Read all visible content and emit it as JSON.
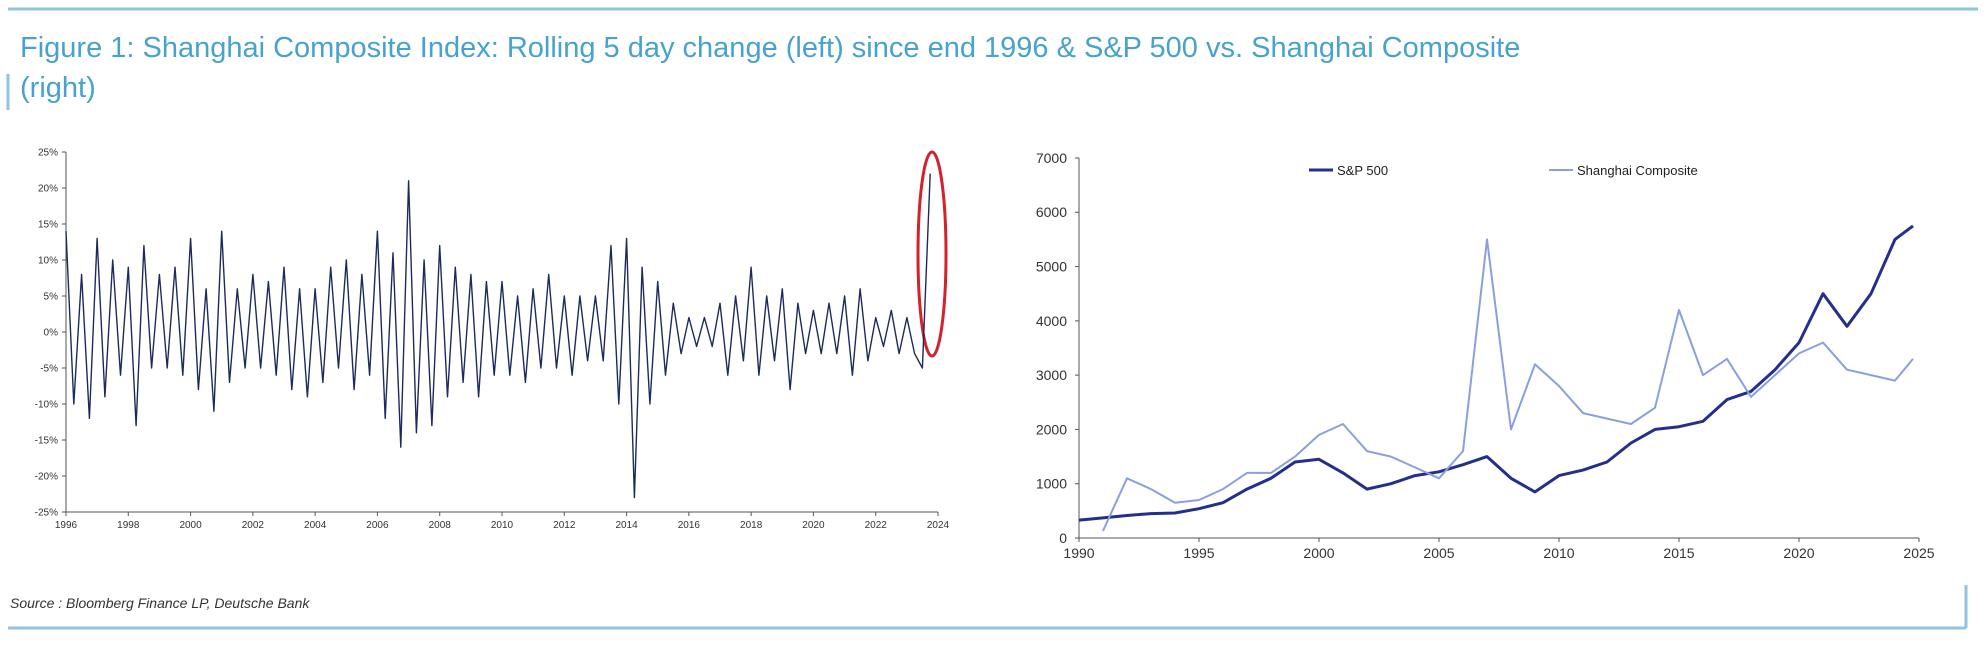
{
  "header": {
    "title": "Figure 1: Shanghai Composite Index: Rolling 5 day change (left) since end 1996 & S&P 500 vs. Shanghai Composite (right)"
  },
  "footer": {
    "source": "Source : Bloomberg Finance LP, Deutsche Bank"
  },
  "chart_data": [
    {
      "type": "line",
      "grid": false,
      "x": [
        1996,
        1996.25,
        1996.5,
        1996.75,
        1997,
        1997.25,
        1997.5,
        1997.75,
        1998,
        1998.25,
        1998.5,
        1998.75,
        1999,
        1999.25,
        1999.5,
        1999.75,
        2000,
        2000.25,
        2000.5,
        2000.75,
        2001,
        2001.25,
        2001.5,
        2001.75,
        2002,
        2002.25,
        2002.5,
        2002.75,
        2003,
        2003.25,
        2003.5,
        2003.75,
        2004,
        2004.25,
        2004.5,
        2004.75,
        2005,
        2005.25,
        2005.5,
        2005.75,
        2006,
        2006.25,
        2006.5,
        2006.75,
        2007,
        2007.25,
        2007.5,
        2007.75,
        2008,
        2008.25,
        2008.5,
        2008.75,
        2009,
        2009.25,
        2009.5,
        2009.75,
        2010,
        2010.25,
        2010.5,
        2010.75,
        2011,
        2011.25,
        2011.5,
        2011.75,
        2012,
        2012.25,
        2012.5,
        2012.75,
        2013,
        2013.25,
        2013.5,
        2013.75,
        2014,
        2014.25,
        2014.5,
        2014.75,
        2015,
        2015.25,
        2015.5,
        2015.75,
        2016,
        2016.25,
        2016.5,
        2016.75,
        2017,
        2017.25,
        2017.5,
        2017.75,
        2018,
        2018.25,
        2018.5,
        2018.75,
        2019,
        2019.25,
        2019.5,
        2019.75,
        2020,
        2020.25,
        2020.5,
        2020.75,
        2021,
        2021.25,
        2021.5,
        2021.75,
        2022,
        2022.25,
        2022.5,
        2022.75,
        2023,
        2023.25,
        2023.5,
        2023.75
      ],
      "series": [
        {
          "name": "Shanghai Composite rolling 5 day change",
          "color": "#1c2a5e",
          "values": [
            14,
            -10,
            8,
            -12,
            13,
            -9,
            10,
            -6,
            9,
            -13,
            12,
            -5,
            8,
            -5,
            9,
            -6,
            13,
            -8,
            6,
            -11,
            14,
            -7,
            6,
            -5,
            8,
            -5,
            7,
            -6,
            9,
            -8,
            6,
            -9,
            6,
            -7,
            9,
            -5,
            10,
            -8,
            8,
            -6,
            14,
            -12,
            11,
            -16,
            21,
            -14,
            10,
            -13,
            12,
            -9,
            9,
            -7,
            8,
            -9,
            7,
            -6,
            7,
            -6,
            5,
            -7,
            6,
            -5,
            8,
            -5,
            5,
            -6,
            5,
            -4,
            5,
            -4,
            12,
            -10,
            13,
            -23,
            9,
            -10,
            7,
            -6,
            4,
            -3,
            2,
            -2,
            2,
            -2,
            4,
            -6,
            5,
            -4,
            9,
            -6,
            5,
            -4,
            6,
            -8,
            4,
            -3,
            3,
            -3,
            4,
            -3,
            5,
            -6,
            6,
            -4,
            2,
            -2,
            3,
            -3,
            2,
            -3,
            -5,
            22
          ]
        }
      ],
      "xlim": [
        1996,
        2024
      ],
      "xticks": [
        1996,
        1998,
        2000,
        2002,
        2004,
        2006,
        2008,
        2010,
        2012,
        2014,
        2016,
        2018,
        2020,
        2022,
        2024
      ],
      "ylim": [
        -25,
        25
      ],
      "yticks": [
        {
          "value": -25,
          "label": "-25%"
        },
        {
          "value": -20,
          "label": "-20%"
        },
        {
          "value": -15,
          "label": "-15%"
        },
        {
          "value": -10,
          "label": "-10%"
        },
        {
          "value": -5,
          "label": "-5%"
        },
        {
          "value": 0,
          "label": "0%"
        },
        {
          "value": 5,
          "label": "5%"
        },
        {
          "value": 10,
          "label": "10%"
        },
        {
          "value": 15,
          "label": "15%"
        },
        {
          "value": 20,
          "label": "20%"
        },
        {
          "value": 25,
          "label": "25%"
        }
      ]
    },
    {
      "type": "line",
      "grid": false,
      "legend": "top",
      "x": [
        1990,
        1991,
        1992,
        1993,
        1994,
        1995,
        1996,
        1997,
        1998,
        1999,
        2000,
        2001,
        2002,
        2003,
        2004,
        2005,
        2006,
        2007,
        2008,
        2009,
        2010,
        2011,
        2012,
        2013,
        2014,
        2015,
        2016,
        2017,
        2018,
        2019,
        2020,
        2021,
        2022,
        2023,
        2024,
        2024.75
      ],
      "series": [
        {
          "name": "S&P 500",
          "color": "#232f8c",
          "values": [
            330,
            370,
            415,
            450,
            460,
            540,
            650,
            900,
            1100,
            1400,
            1450,
            1200,
            900,
            1000,
            1150,
            1220,
            1350,
            1500,
            1100,
            850,
            1150,
            1250,
            1400,
            1750,
            2000,
            2050,
            2150,
            2550,
            2700,
            3100,
            3600,
            4500,
            3900,
            4500,
            5500,
            5750
          ]
        },
        {
          "name": "Shanghai  Composite",
          "color": "#8a9fe0",
          "values": [
            null,
            130,
            1100,
            900,
            650,
            700,
            900,
            1200,
            1200,
            1500,
            1900,
            2100,
            1600,
            1500,
            1300,
            1100,
            1600,
            5500,
            2000,
            3200,
            2800,
            2300,
            2200,
            2100,
            2400,
            4200,
            3000,
            3300,
            2600,
            3000,
            3400,
            3600,
            3100,
            3000,
            2900,
            3300
          ]
        }
      ],
      "xlim": [
        1990,
        2025
      ],
      "xticks": [
        1990,
        1995,
        2000,
        2005,
        2010,
        2015,
        2020,
        2025
      ],
      "ylim": [
        0,
        7000
      ],
      "yticks": [
        0,
        1000,
        2000,
        3000,
        4000,
        5000,
        6000,
        7000
      ]
    }
  ]
}
